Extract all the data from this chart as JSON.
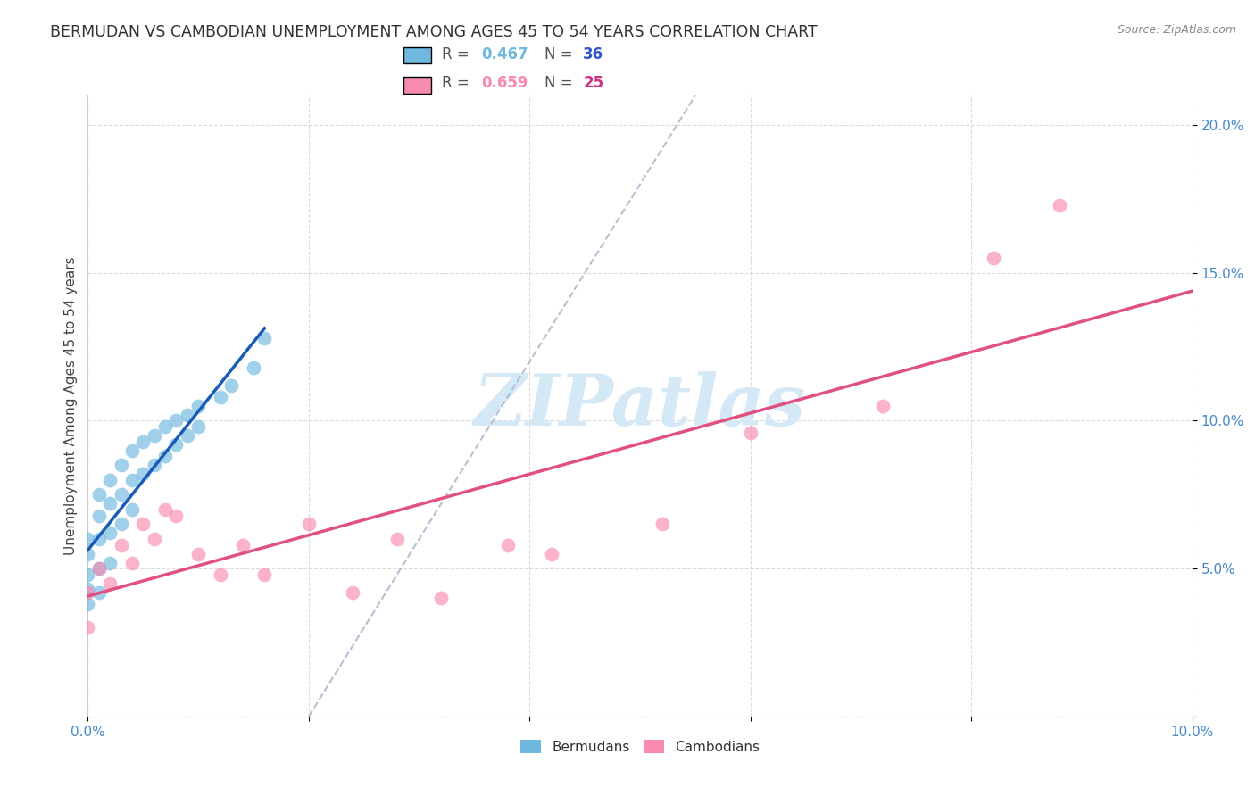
{
  "title": "BERMUDAN VS CAMBODIAN UNEMPLOYMENT AMONG AGES 45 TO 54 YEARS CORRELATION CHART",
  "source": "Source: ZipAtlas.com",
  "ylabel": "Unemployment Among Ages 45 to 54 years",
  "xlim": [
    0.0,
    0.1
  ],
  "ylim": [
    0.0,
    0.21
  ],
  "xticks": [
    0.0,
    0.02,
    0.04,
    0.06,
    0.08,
    0.1
  ],
  "yticks": [
    0.0,
    0.05,
    0.1,
    0.15,
    0.2
  ],
  "legend_R1": "0.467",
  "legend_N1": "36",
  "legend_R2": "0.659",
  "legend_N2": "25",
  "legend_color1": "#6fb8e0",
  "legend_color2": "#f88ab0",
  "watermark_text": "ZIPatlas",
  "watermark_color": "#d5e8f5",
  "bermuda_x": [
    0.0,
    0.0,
    0.0,
    0.0,
    0.0,
    0.001,
    0.001,
    0.001,
    0.001,
    0.001,
    0.002,
    0.002,
    0.002,
    0.002,
    0.003,
    0.003,
    0.003,
    0.004,
    0.004,
    0.004,
    0.005,
    0.005,
    0.006,
    0.006,
    0.007,
    0.007,
    0.008,
    0.008,
    0.009,
    0.009,
    0.01,
    0.01,
    0.012,
    0.013,
    0.015,
    0.016
  ],
  "bermuda_y": [
    0.06,
    0.055,
    0.048,
    0.043,
    0.038,
    0.075,
    0.068,
    0.06,
    0.05,
    0.042,
    0.08,
    0.072,
    0.062,
    0.052,
    0.085,
    0.075,
    0.065,
    0.09,
    0.08,
    0.07,
    0.093,
    0.082,
    0.095,
    0.085,
    0.098,
    0.088,
    0.1,
    0.092,
    0.102,
    0.095,
    0.105,
    0.098,
    0.108,
    0.112,
    0.118,
    0.128
  ],
  "cambodia_x": [
    0.0,
    0.0,
    0.001,
    0.002,
    0.003,
    0.004,
    0.005,
    0.006,
    0.007,
    0.008,
    0.01,
    0.012,
    0.014,
    0.016,
    0.02,
    0.024,
    0.028,
    0.032,
    0.038,
    0.042,
    0.052,
    0.06,
    0.072,
    0.082,
    0.088
  ],
  "cambodia_y": [
    0.042,
    0.03,
    0.05,
    0.045,
    0.058,
    0.052,
    0.065,
    0.06,
    0.07,
    0.068,
    0.055,
    0.048,
    0.058,
    0.048,
    0.065,
    0.042,
    0.06,
    0.04,
    0.058,
    0.055,
    0.065,
    0.096,
    0.105,
    0.155,
    0.173
  ],
  "bermuda_line_color": "#1a5cb5",
  "cambodia_line_color": "#e05080",
  "diagonal_color": "#b0b8d0",
  "background": "#ffffff",
  "grid_color": "#cccccc",
  "title_fontsize": 12.5,
  "axis_label_fontsize": 11,
  "tick_fontsize": 11
}
